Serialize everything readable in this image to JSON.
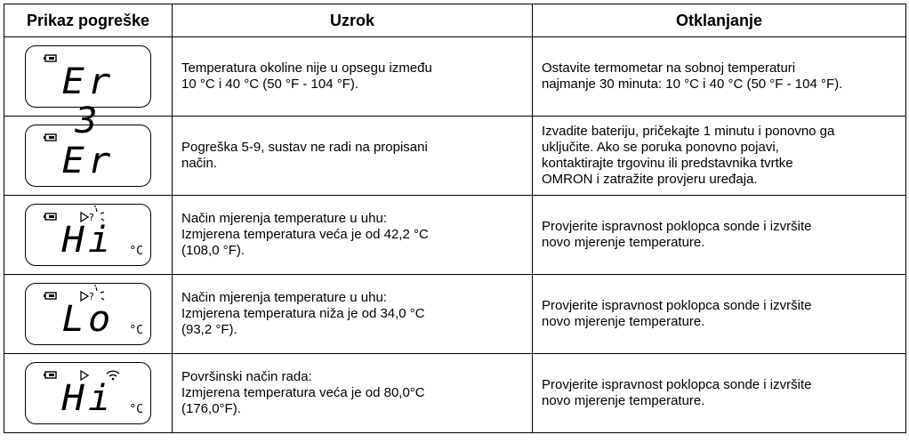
{
  "table": {
    "header": [
      "Prikaz pogreške",
      "Uzrok",
      "Otklanjanje"
    ],
    "rows": [
      {
        "display": "Er 3",
        "cause": [
          "Temperatura okoline nije u opsegu između",
          "10 °C i 40 °C (50 °F - 104 °F)."
        ],
        "remedy": [
          "Ostavite termometar na sobnoj temperaturi",
          "najmanje 30 minuta: 10 °C i 40 °C (50 °F - 104 °F)."
        ]
      },
      {
        "display": "Er",
        "cause": [
          "Pogreška 5-9, sustav ne radi na propisani",
          "način."
        ],
        "remedy": [
          "Izvadite bateriju, pričekajte 1 minutu i ponovno ga",
          "uključite. Ako se poruka ponovno pojavi,",
          "kontaktirajte trgovinu ili predstavnika tvrtke",
          "OMRON i zatražite provjeru uređaja."
        ]
      },
      {
        "display": "Hi",
        "unit": "°C",
        "cause": [
          "Način mjerenja temperature u uhu:",
          "Izmjerena temperatura veća je od 42,2 °C",
          "(108,0 °F)."
        ],
        "remedy": [
          "Provjerite ispravnost poklopca sonde i izvršite",
          "novo mjerenje temperature."
        ]
      },
      {
        "display": "Lo",
        "unit": "°C",
        "cause": [
          "Način mjerenja temperature u uhu:",
          "Izmjerena temperatura niža je od 34,0 °C",
          "(93,2 °F)."
        ],
        "remedy": [
          "Provjerite ispravnost poklopca sonde i izvršite",
          "novo mjerenje temperature."
        ]
      },
      {
        "display": "Hi",
        "unit": "°C",
        "cause": [
          "Površinski način rada:",
          "Izmjerena temperatura veća je od 80,0°C",
          "(176,0°F)."
        ],
        "remedy": [
          "Provjerite ispravnost poklopca sonde i izvršite",
          "novo mjerenje temperature."
        ]
      }
    ]
  }
}
